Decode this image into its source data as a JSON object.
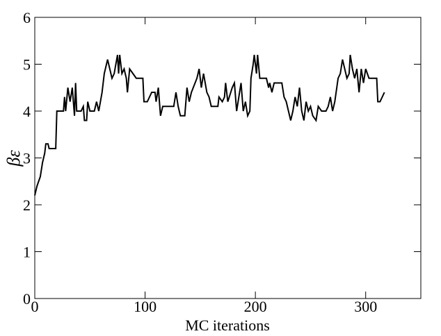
{
  "chart_data": {
    "type": "line",
    "xlabel": "MC iterations",
    "ylabel": "βε",
    "xlim": [
      0,
      350
    ],
    "ylim": [
      0,
      6
    ],
    "xticks": [
      0,
      100,
      200,
      300
    ],
    "yticks": [
      0,
      1,
      2,
      3,
      4,
      5,
      6
    ],
    "series": [
      {
        "color": "#000000",
        "x": [
          0,
          2,
          5,
          7,
          9,
          10,
          12,
          13,
          19,
          20,
          26,
          27,
          28,
          30,
          32,
          34,
          36,
          37,
          38,
          42,
          44,
          45,
          47,
          48,
          50,
          54,
          56,
          58,
          61,
          63,
          66,
          68,
          70,
          72,
          75,
          76,
          77,
          79,
          81,
          83,
          84,
          86,
          89,
          92,
          98,
          99,
          102,
          104,
          106,
          109,
          110,
          112,
          114,
          116,
          126,
          128,
          130,
          132,
          136,
          138,
          140,
          142,
          147,
          149,
          151,
          153,
          156,
          158,
          160,
          166,
          167,
          170,
          172,
          173,
          175,
          179,
          181,
          183,
          185,
          187,
          189,
          191,
          193,
          195,
          196,
          198,
          199,
          201,
          202,
          204,
          210,
          212,
          213,
          215,
          217,
          224,
          226,
          228,
          230,
          232,
          234,
          236,
          238,
          240,
          242,
          244,
          246,
          248,
          250,
          252,
          255,
          257,
          260,
          264,
          266,
          268,
          270,
          272,
          275,
          277,
          279,
          281,
          283,
          285,
          286,
          288,
          290,
          292,
          294,
          296,
          298,
          300,
          303,
          310,
          311,
          313,
          315,
          317
        ],
        "values": [
          2.2,
          2.4,
          2.6,
          2.9,
          3.1,
          3.3,
          3.3,
          3.2,
          3.2,
          4.0,
          4.0,
          4.3,
          4.0,
          4.5,
          4.2,
          4.5,
          3.9,
          4.6,
          4.0,
          4.0,
          4.1,
          3.8,
          3.8,
          4.2,
          4.0,
          4.0,
          4.2,
          4.0,
          4.4,
          4.8,
          5.1,
          4.9,
          4.7,
          4.8,
          5.2,
          4.8,
          5.2,
          4.8,
          4.9,
          4.7,
          4.4,
          4.9,
          4.8,
          4.7,
          4.7,
          4.2,
          4.2,
          4.3,
          4.4,
          4.4,
          4.2,
          4.5,
          3.9,
          4.1,
          4.1,
          4.4,
          4.1,
          3.9,
          3.9,
          4.5,
          4.2,
          4.4,
          4.7,
          4.9,
          4.5,
          4.8,
          4.4,
          4.3,
          4.1,
          4.1,
          4.3,
          4.2,
          4.3,
          4.6,
          4.2,
          4.5,
          4.6,
          4.0,
          4.3,
          4.6,
          4.0,
          4.2,
          3.9,
          4.0,
          4.7,
          5.0,
          5.2,
          4.8,
          5.2,
          4.7,
          4.7,
          4.5,
          4.6,
          4.4,
          4.6,
          4.6,
          4.3,
          4.2,
          4.0,
          3.8,
          4.0,
          4.3,
          4.1,
          4.5,
          4.0,
          3.8,
          4.2,
          4.0,
          4.1,
          3.9,
          3.8,
          4.1,
          4.0,
          4.0,
          4.1,
          4.3,
          4.0,
          4.2,
          4.7,
          4.8,
          5.1,
          4.9,
          4.7,
          4.8,
          5.2,
          4.9,
          4.7,
          4.9,
          4.4,
          4.9,
          4.6,
          4.9,
          4.7,
          4.7,
          4.2,
          4.2,
          4.3,
          4.4
        ]
      }
    ]
  }
}
